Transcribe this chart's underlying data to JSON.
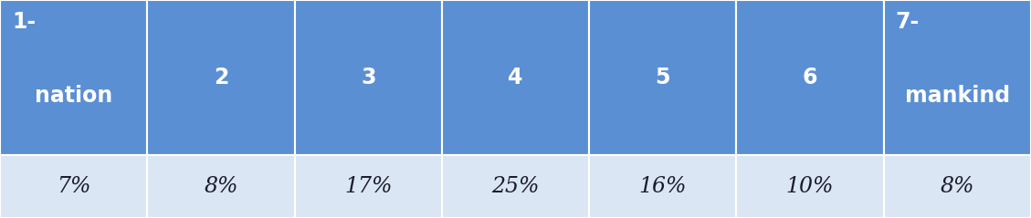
{
  "headers_top": [
    "1-",
    "",
    "",
    "",
    "",
    "",
    "7-"
  ],
  "headers_bottom": [
    "nation",
    "2",
    "3",
    "4",
    "5",
    "6",
    "mankind"
  ],
  "headers_center": [
    false,
    true,
    true,
    true,
    true,
    true,
    false
  ],
  "values": [
    "7%",
    "8%",
    "17%",
    "25%",
    "16%",
    "10%",
    "8%"
  ],
  "header_bg_color": "#5b8fd4",
  "value_bg_color": "#dae6f3",
  "header_text_color": "#ffffff",
  "value_text_color": "#1a1a2e",
  "border_color": "#ffffff",
  "n_cols": 7,
  "header_fontsize": 17,
  "value_fontsize": 17,
  "fig_width": 11.29,
  "fig_height": 2.39
}
